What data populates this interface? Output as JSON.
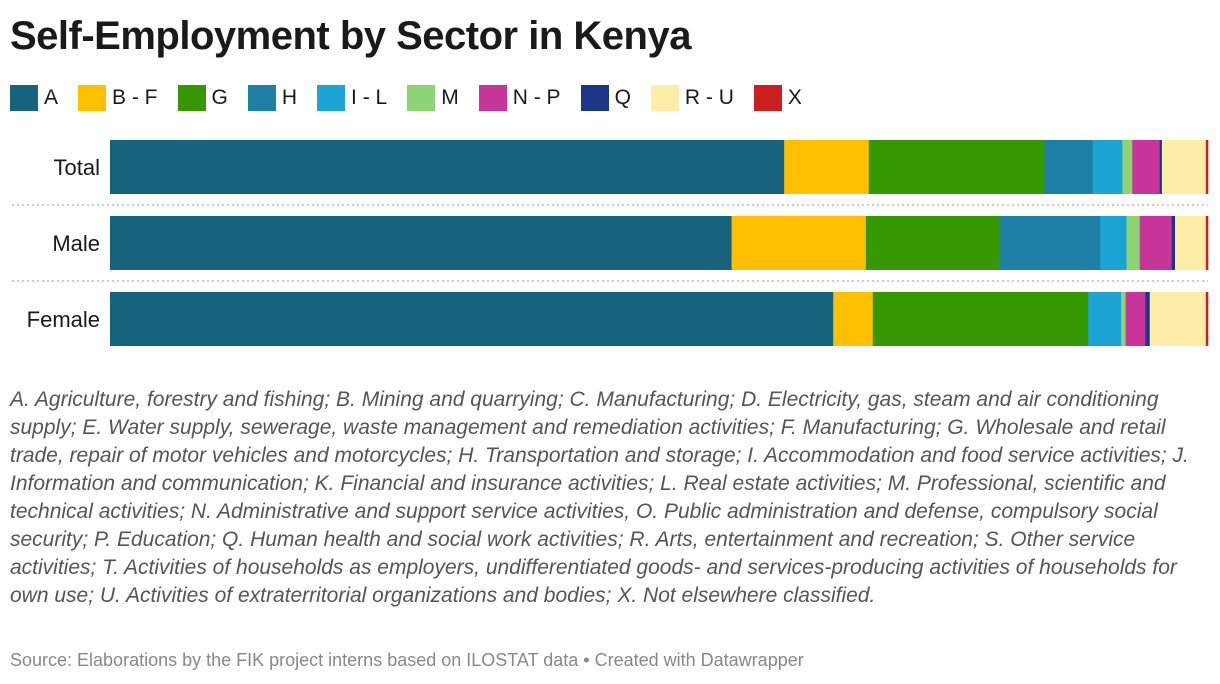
{
  "title": "Self-Employment by Sector in Kenya",
  "colors": {
    "A": "#17627c",
    "B - F": "#fec000",
    "G": "#359800",
    "H": "#1d7fa3",
    "I - L": "#1ba4d4",
    "M": "#8ed375",
    "N - P": "#c8359a",
    "Q": "#1b3588",
    "R - U": "#feeda6",
    "X": "#c8201f"
  },
  "chart_data": {
    "type": "bar",
    "orientation": "horizontal",
    "stacked": true,
    "normalized": true,
    "categories": [
      "Total",
      "Male",
      "Female"
    ],
    "series": [
      {
        "name": "A",
        "values": [
          61.4,
          56.5,
          65.8
        ]
      },
      {
        "name": "B - F",
        "values": [
          7.7,
          12.2,
          3.6
        ]
      },
      {
        "name": "G",
        "values": [
          16.0,
          12.2,
          19.6
        ]
      },
      {
        "name": "H",
        "values": [
          4.4,
          9.1,
          0.0
        ]
      },
      {
        "name": "I - L",
        "values": [
          2.7,
          2.4,
          3.0
        ]
      },
      {
        "name": "M",
        "values": [
          0.9,
          1.2,
          0.4
        ]
      },
      {
        "name": "N - P",
        "values": [
          2.5,
          2.9,
          1.8
        ]
      },
      {
        "name": "Q",
        "values": [
          0.2,
          0.3,
          0.4
        ]
      },
      {
        "name": "R - U",
        "values": [
          4.0,
          2.8,
          5.1
        ]
      },
      {
        "name": "X",
        "values": [
          0.2,
          0.2,
          0.2
        ]
      }
    ],
    "xlim": [
      0,
      100
    ],
    "legend_position": "top-left"
  },
  "note": "A. Agriculture, forestry and fishing; B. Mining and quarrying; C. Manufacturing; D. Electricity, gas, steam and air conditioning supply; E. Water supply, sewerage, waste management and remediation activities; F. Manufacturing; G. Wholesale and retail trade, repair of motor vehicles and motorcycles; H. Transportation and storage; I. Accommodation and food service activities; J. Information and communication; K. Financial and insurance activities; L. Real estate activities; M. Professional, scientific and technical activities; N. Administrative and support service activities, O. Public administration and defense, compulsory social security; P. Education; Q. Human health and social work activities; R. Arts, entertainment and recreation; S. Other service activities; T. Activities of households as employers, undifferentiated goods- and services-producing activities of households for own use; U. Activities of extraterritorial organizations and bodies; X. Not elsewhere classified.",
  "source": "Source: Elaborations by the FIK project interns based on ILOSTAT data • Created with Datawrapper"
}
